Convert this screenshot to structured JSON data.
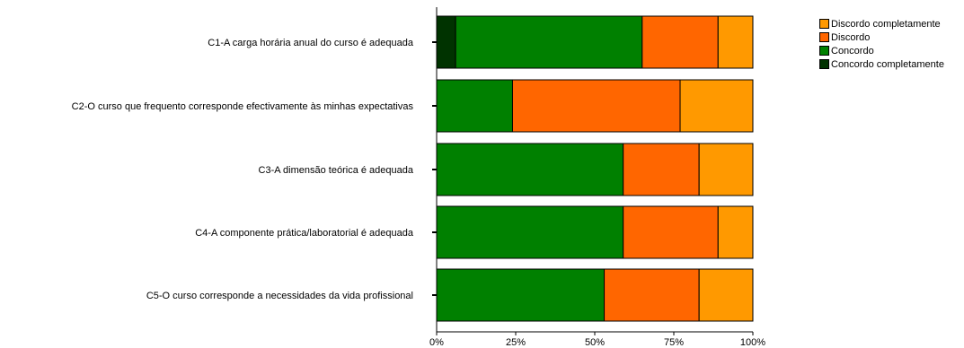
{
  "chart_data": {
    "type": "bar",
    "orientation": "horizontal",
    "stacked": "percent",
    "categories": [
      "C1-A carga horária anual do curso é adequada",
      "C2-O curso que frequento corresponde efectivamente às minhas expectativas",
      "C3-A dimensão teórica é adequada",
      "C4-A componente prática/laboratorial é adequada",
      "C5-O curso corresponde a necessidades da vida profissional"
    ],
    "series": [
      {
        "name": "Concordo completamente",
        "color": "#003300",
        "values": [
          6,
          0,
          0,
          0,
          0
        ]
      },
      {
        "name": "Concordo",
        "color": "#008000",
        "values": [
          59,
          24,
          59,
          59,
          53
        ]
      },
      {
        "name": "Discordo",
        "color": "#ff6600",
        "values": [
          24,
          53,
          24,
          30,
          30
        ]
      },
      {
        "name": "Discordo completamente",
        "color": "#ff9900",
        "values": [
          11,
          23,
          17,
          11,
          17
        ]
      }
    ],
    "xticks": [
      "0%",
      "25%",
      "50%",
      "75%",
      "100%"
    ],
    "xlim": [
      0,
      100
    ],
    "legend_order": [
      "Discordo completamente",
      "Discordo",
      "Concordo",
      "Concordo completamente"
    ],
    "legend_position": "top-right",
    "grid": false
  }
}
